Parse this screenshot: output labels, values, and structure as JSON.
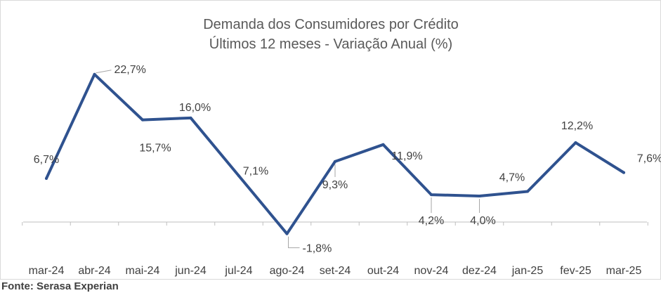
{
  "chart_data": {
    "type": "line",
    "title": "Demanda dos Consumidores por Crédito",
    "subtitle": "Últimos 12 meses - Variação Anual (%)",
    "categories": [
      "mar-24",
      "abr-24",
      "mai-24",
      "jun-24",
      "jul-24",
      "ago-24",
      "set-24",
      "out-24",
      "nov-24",
      "dez-24",
      "jan-25",
      "fev-25",
      "mar-25"
    ],
    "series": [
      {
        "values": [
          6.7,
          22.7,
          15.7,
          16.0,
          7.1,
          -1.8,
          9.3,
          11.9,
          4.2,
          4.0,
          4.7,
          12.2,
          7.6
        ],
        "labels": [
          "6,7%",
          "22,7%",
          "15,7%",
          "16,0%",
          "7,1%",
          "-1,8%",
          "9,3%",
          "11,9%",
          "4,2%",
          "4,0%",
          "4,7%",
          "12,2%",
          "7,6%"
        ]
      }
    ],
    "ylim": [
      -2,
      26
    ],
    "grid": false,
    "line_color": "#2f528f"
  },
  "source": "Fonte: Serasa Experian"
}
